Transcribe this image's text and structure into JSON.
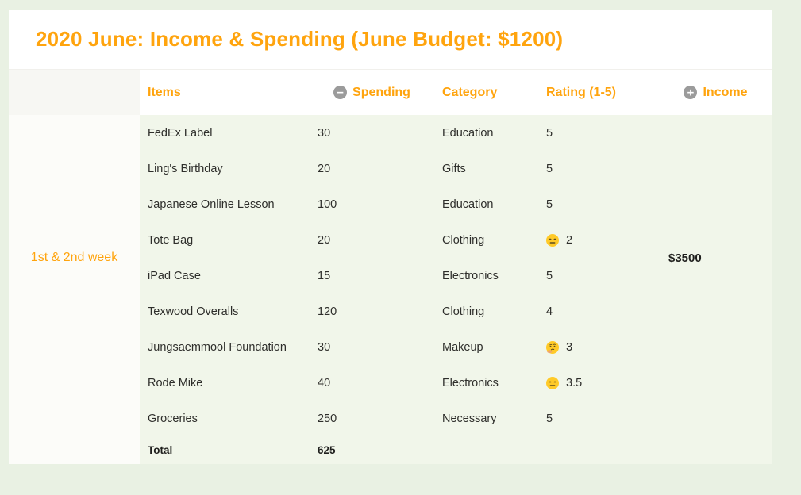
{
  "page": {
    "title": "2020 June: Income & Spending (June Budget: $1200)"
  },
  "colors": {
    "accent_orange": "#ffa40e",
    "page_background": "#e9f1e3",
    "table_body_background": "#f1f6ea",
    "week_column_background": "#fcfcf9",
    "header_background": "#ffffff",
    "icon_gray": "#9b9b9b",
    "emoji_yellow": "#ffca28"
  },
  "table": {
    "week_label": "1st & 2nd week",
    "income_value": "$3500",
    "headers": {
      "items": "Items",
      "spending": "Spending",
      "spending_icon": "minus-circle-icon",
      "spending_icon_glyph": "−",
      "category": "Category",
      "rating": "Rating (1-5)",
      "income": "Income",
      "income_icon": "plus-circle-icon",
      "income_icon_glyph": "+"
    },
    "rows": [
      {
        "item": "FedEx Label",
        "spending": "30",
        "category": "Education",
        "rating": "5",
        "rating_icon": null
      },
      {
        "item": "Ling's Birthday",
        "spending": "20",
        "category": "Gifts",
        "rating": "5",
        "rating_icon": null
      },
      {
        "item": "Japanese Online Lesson",
        "spending": "100",
        "category": "Education",
        "rating": "5",
        "rating_icon": null
      },
      {
        "item": "Tote Bag",
        "spending": "20",
        "category": "Clothing",
        "rating": "2",
        "rating_icon": "expressionless-face-icon"
      },
      {
        "item": "iPad Case",
        "spending": "15",
        "category": "Electronics",
        "rating": "5",
        "rating_icon": null
      },
      {
        "item": "Texwood Overalls",
        "spending": "120",
        "category": "Clothing",
        "rating": "4",
        "rating_icon": null
      },
      {
        "item": "Jungsaemmool Foundation",
        "spending": "30",
        "category": "Makeup",
        "rating": "3",
        "rating_icon": "thinking-face-icon"
      },
      {
        "item": "Rode Mike",
        "spending": "40",
        "category": "Electronics",
        "rating": "3.5",
        "rating_icon": "expressionless-face-icon"
      },
      {
        "item": "Groceries",
        "spending": "250",
        "category": "Necessary",
        "rating": "5",
        "rating_icon": null
      }
    ],
    "total": {
      "label": "Total",
      "spending": "625"
    }
  }
}
